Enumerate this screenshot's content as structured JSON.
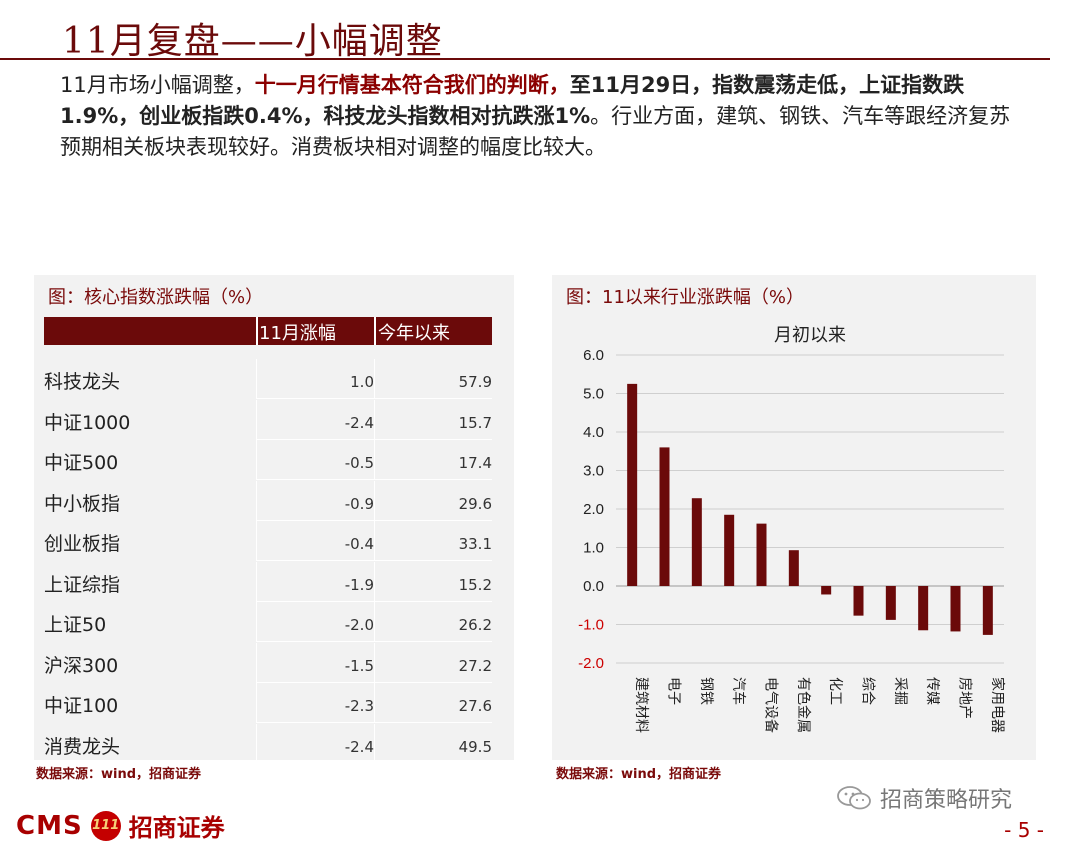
{
  "page": {
    "title": "11月复盘——小幅调整",
    "page_number": "- 5 -"
  },
  "paragraph": {
    "p1": "11月市场小幅调整，",
    "p2": "十一月行情基本符合我们的判断，",
    "p3": "至11月29日，指数震荡走低，上证指数跌1.9%，创业板指跌0.4%，科技龙头指数相对抗跌涨1%",
    "p4": "。行业方面，建筑、钢铁、汽车等跟经济复苏预期相关板块表现较好。消费板块相对调整的幅度比较大。"
  },
  "left_panel": {
    "title": "图：核心指数涨跌幅（%）",
    "headers": [
      "11月涨幅",
      "今年以来"
    ],
    "rows": [
      {
        "name": "科技龙头",
        "nov": "1.0",
        "ytd": "57.9"
      },
      {
        "name": "中证1000",
        "nov": "-2.4",
        "ytd": "15.7"
      },
      {
        "name": "中证500",
        "nov": "-0.5",
        "ytd": "17.4"
      },
      {
        "name": "中小板指",
        "nov": "-0.9",
        "ytd": "29.6"
      },
      {
        "name": "创业板指",
        "nov": "-0.4",
        "ytd": "33.1"
      },
      {
        "name": "上证综指",
        "nov": "-1.9",
        "ytd": "15.2"
      },
      {
        "name": "上证50",
        "nov": "-2.0",
        "ytd": "26.2"
      },
      {
        "name": "沪深300",
        "nov": "-1.5",
        "ytd": "27.2"
      },
      {
        "name": "中证100",
        "nov": "-2.3",
        "ytd": "27.6"
      },
      {
        "name": "消费龙头",
        "nov": "-2.4",
        "ytd": "49.5"
      }
    ],
    "source": "数据来源：wind，招商证券"
  },
  "right_panel": {
    "title": "图：11以来行业涨跌幅（%）",
    "source": "数据来源：wind，招商证券"
  },
  "chart_data": {
    "type": "bar",
    "title": "月初以来",
    "categories": [
      "建筑材料",
      "电子",
      "钢铁",
      "汽车",
      "电气设备",
      "有色金属",
      "化工",
      "综合",
      "采掘",
      "传媒",
      "房地产",
      "家用电器"
    ],
    "values": [
      5.25,
      3.6,
      2.28,
      1.85,
      1.62,
      0.93,
      -0.22,
      -0.77,
      -0.88,
      -1.15,
      -1.18,
      -1.27
    ],
    "ylim": [
      -2.0,
      6.0
    ],
    "yticks": [
      "6.0",
      "5.0",
      "4.0",
      "3.0",
      "2.0",
      "1.0",
      "0.0",
      "-1.0",
      "-2.0"
    ],
    "grid": true,
    "bar_color": "#6b0a0a",
    "negative_tick_color": "#cc0000"
  },
  "footer": {
    "logo_text": "CMS",
    "badge_text": "111",
    "logo_cn": "招商证券",
    "wechat_label": "招商策略研究"
  }
}
